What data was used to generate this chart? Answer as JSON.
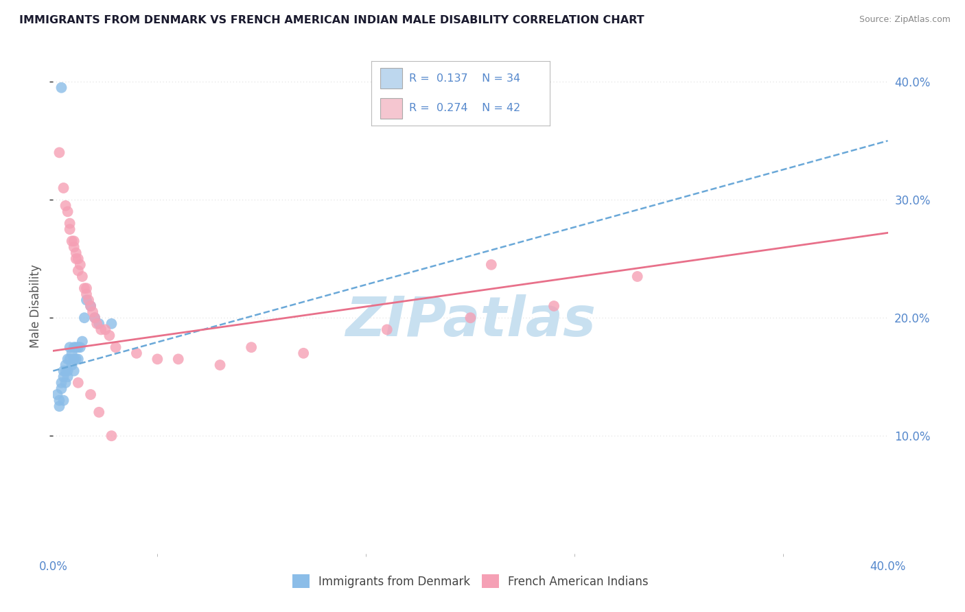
{
  "title": "IMMIGRANTS FROM DENMARK VS FRENCH AMERICAN INDIAN MALE DISABILITY CORRELATION CHART",
  "source": "Source: ZipAtlas.com",
  "ylabel": "Male Disability",
  "xlim": [
    0.0,
    0.4
  ],
  "ylim": [
    0.0,
    0.42
  ],
  "denmark_color": "#8BBDE8",
  "pink_color": "#F5A0B5",
  "trend_denmark_color": "#6AA8D8",
  "trend_pink_color": "#E8708A",
  "legend_blue_fill": "#BDD7EE",
  "legend_pink_fill": "#F5C6D0",
  "r_denmark": 0.137,
  "n_denmark": 34,
  "r_pink": 0.274,
  "n_pink": 42,
  "denmark_x": [
    0.002,
    0.003,
    0.003,
    0.004,
    0.004,
    0.005,
    0.005,
    0.005,
    0.006,
    0.006,
    0.006,
    0.007,
    0.007,
    0.007,
    0.008,
    0.008,
    0.009,
    0.009,
    0.01,
    0.01,
    0.01,
    0.011,
    0.011,
    0.012,
    0.012,
    0.013,
    0.014,
    0.015,
    0.016,
    0.018,
    0.02,
    0.022,
    0.028,
    0.004
  ],
  "denmark_y": [
    0.135,
    0.13,
    0.125,
    0.145,
    0.14,
    0.155,
    0.15,
    0.13,
    0.16,
    0.155,
    0.145,
    0.165,
    0.155,
    0.15,
    0.175,
    0.165,
    0.17,
    0.16,
    0.175,
    0.165,
    0.155,
    0.175,
    0.165,
    0.175,
    0.165,
    0.175,
    0.18,
    0.2,
    0.215,
    0.21,
    0.2,
    0.195,
    0.195,
    0.395
  ],
  "pink_x": [
    0.003,
    0.005,
    0.006,
    0.007,
    0.008,
    0.008,
    0.009,
    0.01,
    0.01,
    0.011,
    0.011,
    0.012,
    0.012,
    0.013,
    0.014,
    0.015,
    0.016,
    0.016,
    0.017,
    0.018,
    0.019,
    0.02,
    0.021,
    0.023,
    0.025,
    0.027,
    0.03,
    0.04,
    0.05,
    0.06,
    0.08,
    0.12,
    0.16,
    0.2,
    0.24,
    0.28,
    0.012,
    0.018,
    0.022,
    0.028,
    0.095,
    0.21
  ],
  "pink_y": [
    0.34,
    0.31,
    0.295,
    0.29,
    0.275,
    0.28,
    0.265,
    0.265,
    0.26,
    0.255,
    0.25,
    0.25,
    0.24,
    0.245,
    0.235,
    0.225,
    0.225,
    0.22,
    0.215,
    0.21,
    0.205,
    0.2,
    0.195,
    0.19,
    0.19,
    0.185,
    0.175,
    0.17,
    0.165,
    0.165,
    0.16,
    0.17,
    0.19,
    0.2,
    0.21,
    0.235,
    0.145,
    0.135,
    0.12,
    0.1,
    0.175,
    0.245
  ],
  "grid_color": "#DDDDDD",
  "watermark_text": "ZIPatlas",
  "watermark_color": "#C8E0F0",
  "background_color": "#FFFFFF",
  "title_color": "#1A1A2E",
  "axis_label_color": "#555555",
  "tick_label_color": "#5588CC"
}
